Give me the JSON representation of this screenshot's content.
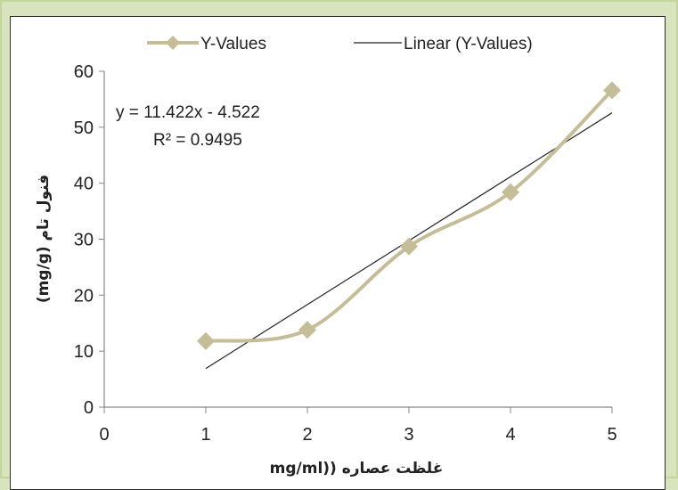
{
  "chart_data": {
    "type": "line",
    "title": "",
    "xlabel": "mg/ml)) غلظت عصاره",
    "ylabel": "(mg/g) فنول تام",
    "xlim": [
      0,
      5
    ],
    "ylim": [
      0,
      60
    ],
    "x_ticks": [
      "0",
      "1",
      "2",
      "3",
      "4",
      "5"
    ],
    "y_ticks": [
      "0",
      "10",
      "20",
      "30",
      "40",
      "50",
      "60"
    ],
    "series": [
      {
        "name": "Y-Values",
        "x": [
          1,
          2,
          3,
          4,
          5
        ],
        "y": [
          11.8,
          13.8,
          28.7,
          38.4,
          56.6
        ],
        "color": "#c4bd97",
        "marker": "diamond",
        "smooth": true
      },
      {
        "name": "Linear (Y-Values)",
        "type": "trendline",
        "x": [
          1,
          5
        ],
        "y": [
          6.9,
          52.59
        ],
        "color": "#222222"
      }
    ],
    "equation": "y = 11.422x - 4.522",
    "r_squared": "R² = 0.9495",
    "legend": "top",
    "grid": false
  }
}
